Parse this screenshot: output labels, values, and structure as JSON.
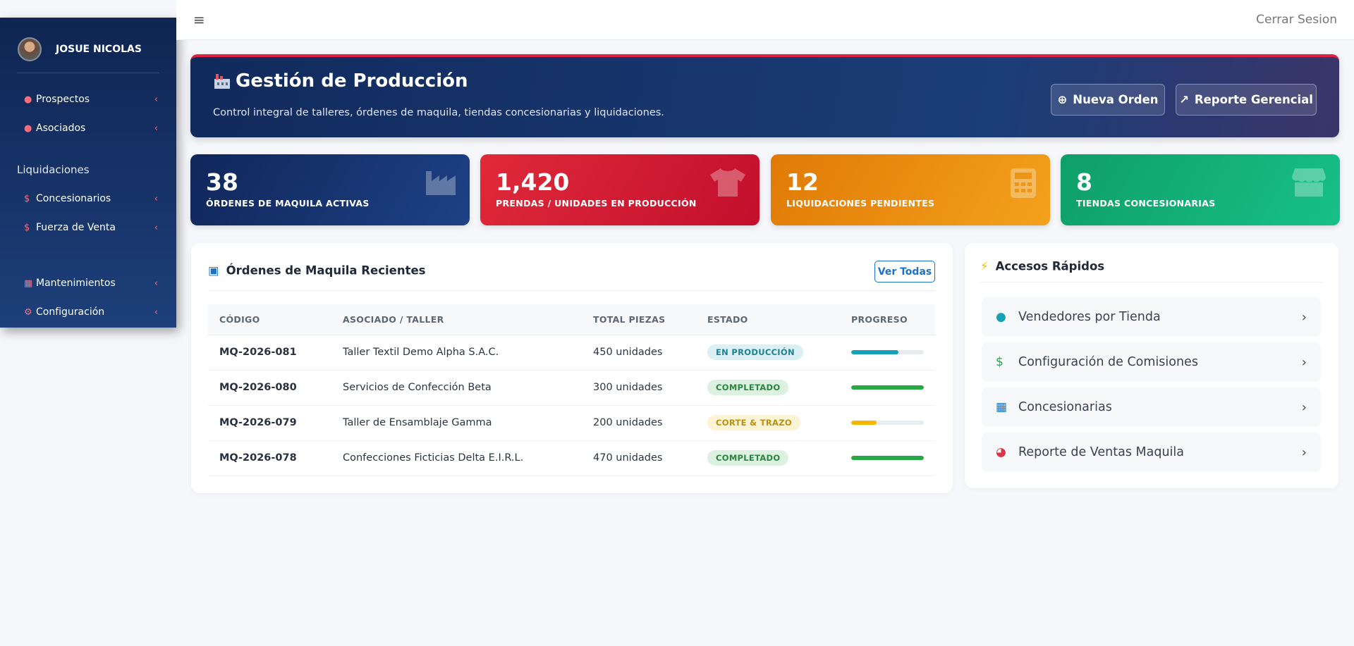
{
  "sidebar": {
    "user": "JOSUE NICOLAS",
    "menu": [
      {
        "label": "Prospectos"
      },
      {
        "label": "Asociados"
      }
    ],
    "section": "Liquidaciones",
    "menu2": [
      {
        "label": "Concesionarios"
      },
      {
        "label": "Fuerza de Venta"
      }
    ],
    "menu3": [
      {
        "label": "Mantenimientos"
      },
      {
        "label": "Configuración"
      }
    ]
  },
  "topbar": {
    "logout": "Cerrar Sesion"
  },
  "hero": {
    "title": "Gestión de Producción",
    "subtitle": "Control integral de talleres, órdenes de maquila, tiendas concesionarias y liquidaciones.",
    "buttons": [
      "Nueva Orden",
      "Reporte Gerencial"
    ]
  },
  "stats": [
    {
      "value": "38",
      "label": "ÓRDENES DE MAQUILA ACTIVAS"
    },
    {
      "value": "1,420",
      "label": "PRENDAS / UNIDADES EN PRODUCCIÓN"
    },
    {
      "value": "12",
      "label": "LIQUIDACIONES PENDIENTES"
    },
    {
      "value": "8",
      "label": "TIENDAS CONCESIONARIAS"
    }
  ],
  "table": {
    "title": "Órdenes de Maquila Recientes",
    "button": "Ver Todas",
    "headers": [
      "CÓDIGO",
      "ASOCIADO / TALLER",
      "TOTAL PIEZAS",
      "ESTADO",
      "PROGRESO"
    ],
    "rows": [
      {
        "code": "MQ-2026-081",
        "partner": "Taller Textil Demo Alpha S.A.C.",
        "total": "450 unidades",
        "status": "EN PRODUCCIÓN",
        "progress": 65,
        "color": "#17a2b8"
      },
      {
        "code": "MQ-2026-080",
        "partner": "Servicios de Confección Beta",
        "total": "300 unidades",
        "status": "COMPLETADO",
        "progress": 100,
        "color": "#28a745"
      },
      {
        "code": "MQ-2026-079",
        "partner": "Taller de Ensamblaje Gamma",
        "total": "200 unidades",
        "status": "CORTE & TRAZO",
        "progress": 35,
        "color": "#f5b800"
      },
      {
        "code": "MQ-2026-078",
        "partner": "Confecciones Ficticias Delta E.I.R.L.",
        "total": "470 unidades",
        "status": "COMPLETADO",
        "progress": 100,
        "color": "#28a745"
      }
    ]
  },
  "quick": {
    "title": "Accesos Rápidos",
    "items": [
      "Vendedores por Tienda",
      "Configuración de Comisiones",
      "Concesionarias",
      "Reporte de Ventas Maquila"
    ]
  }
}
